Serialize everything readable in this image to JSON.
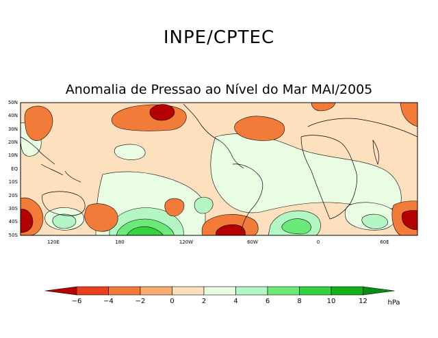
{
  "header": {
    "title": "INPE/CPTEC"
  },
  "map": {
    "title": "Anomalia de Pressao ao Nível do Mar MAI/2005",
    "lat_labels": [
      "50N",
      "40N",
      "30N",
      "20N",
      "10N",
      "EQ",
      "10S",
      "20S",
      "30S",
      "40S",
      "50S"
    ],
    "lon_labels": [
      "120E",
      "180",
      "120W",
      "60W",
      "0",
      "60E"
    ]
  },
  "colorbar": {
    "levels": [
      "-6",
      "-4",
      "-2",
      "0",
      "2",
      "4",
      "6",
      "8",
      "10",
      "12"
    ],
    "unit": "hPa",
    "colors": [
      "#b40000",
      "#e8401c",
      "#f37b3a",
      "#f9ad6e",
      "#fde1bf",
      "#e9fde3",
      "#b5f7c4",
      "#6cea79",
      "#36d13e",
      "#13b01c",
      "#0b8c12"
    ]
  },
  "colors": {
    "neutral_neg": "#fde1bf",
    "neutral_pos": "#e9fde3"
  }
}
